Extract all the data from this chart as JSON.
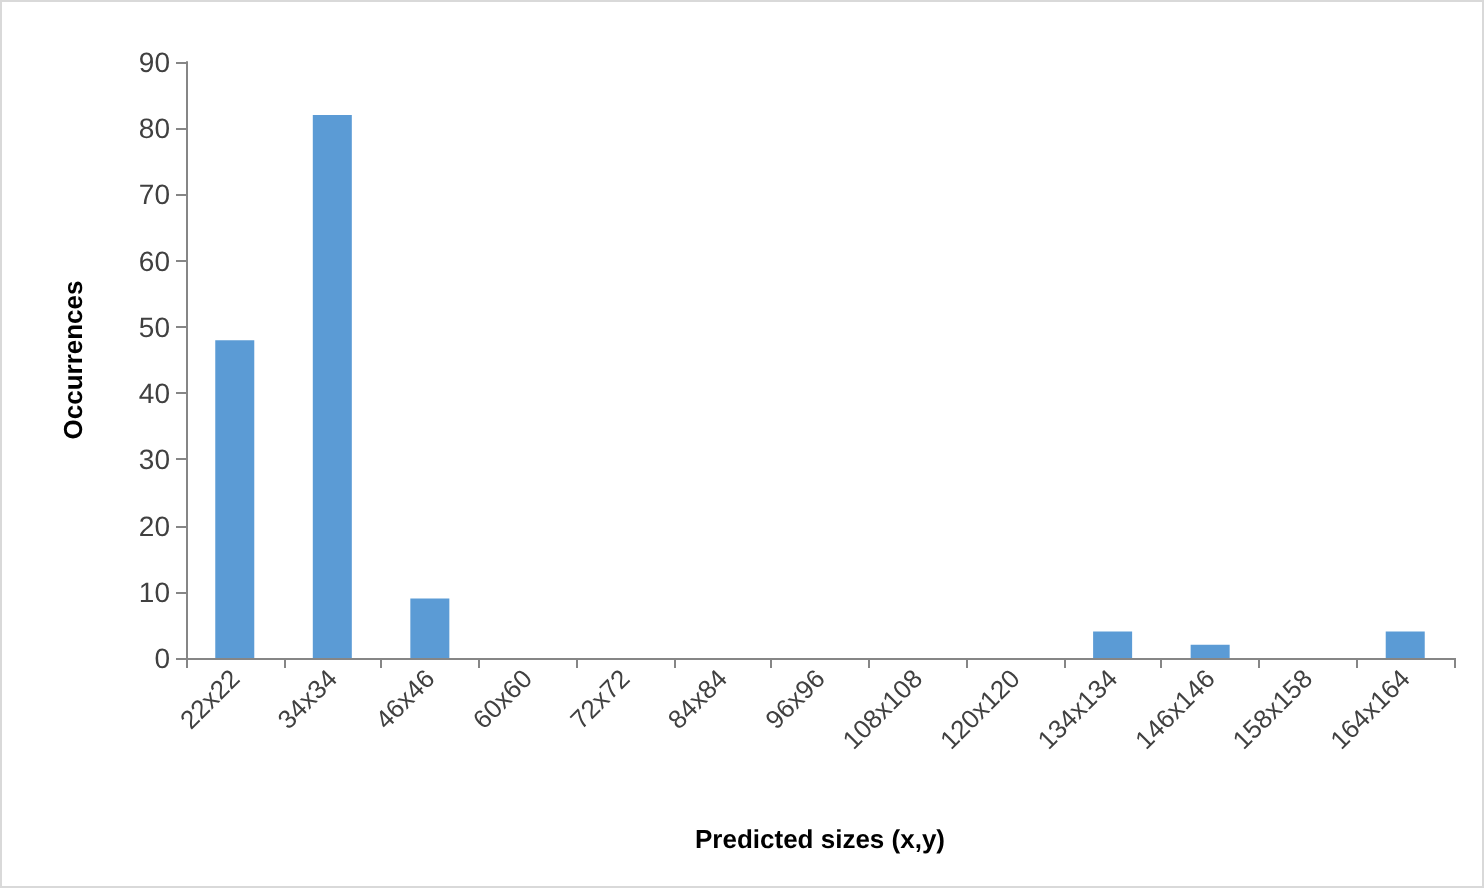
{
  "chart_data": {
    "type": "bar",
    "xlabel": "Predicted sizes (x,y)",
    "ylabel": "Occurrences",
    "categories": [
      "22x22",
      "34x34",
      "46x46",
      "60x60",
      "72x72",
      "84x84",
      "96x96",
      "108x108",
      "120x120",
      "134x134",
      "146x146",
      "158x158",
      "164x164"
    ],
    "values": [
      48,
      82,
      9,
      0,
      0,
      0,
      0,
      0,
      0,
      4,
      2,
      0,
      4
    ],
    "color": "#5b9bd5",
    "ylim": [
      0,
      90
    ],
    "yticks": [
      0,
      10,
      20,
      30,
      40,
      50,
      60,
      70,
      80,
      90
    ],
    "grid": false
  }
}
